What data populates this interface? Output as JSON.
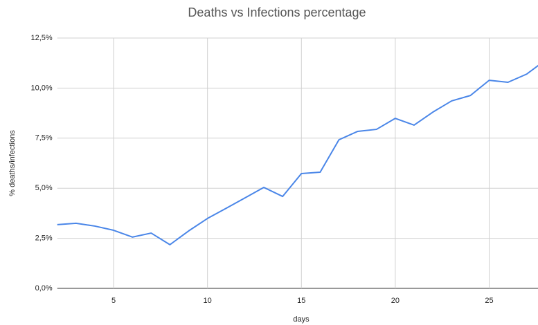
{
  "chart_data": {
    "type": "line",
    "title": "Deaths vs Infections percentage",
    "x_label": "days",
    "y_label": "% deaths/infections",
    "x": [
      2,
      3,
      4,
      5,
      6,
      7,
      8,
      9,
      10,
      11,
      12,
      13,
      14,
      15,
      16,
      17,
      18,
      19,
      20,
      21,
      22,
      23,
      24,
      25,
      26,
      27,
      28
    ],
    "series": [
      {
        "name": "% deaths/infections",
        "color": "#4a86e8",
        "values": [
          3.18,
          3.25,
          3.11,
          2.9,
          2.56,
          2.76,
          2.18,
          2.87,
          3.49,
          4.0,
          4.52,
          5.04,
          4.59,
          5.73,
          5.8,
          7.42,
          7.84,
          7.94,
          8.49,
          8.15,
          8.8,
          9.36,
          9.63,
          10.39,
          10.29,
          10.7,
          11.4
        ]
      }
    ],
    "xlim": [
      2,
      27.6
    ],
    "xticks": [
      5,
      10,
      15,
      20,
      25
    ],
    "ylim": [
      0,
      12.5
    ],
    "yticks": [
      {
        "value": 0,
        "label": "0,0%"
      },
      {
        "value": 2.5,
        "label": "2,5%"
      },
      {
        "value": 5,
        "label": "5,0%"
      },
      {
        "value": 7.5,
        "label": "7,5%"
      },
      {
        "value": 10,
        "label": "10,0%"
      },
      {
        "value": 12.5,
        "label": "12,5%"
      }
    ],
    "grid": true
  }
}
